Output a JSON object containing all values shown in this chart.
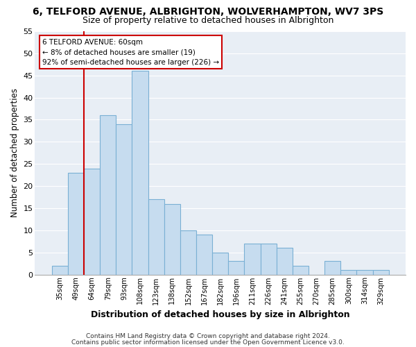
{
  "title": "6, TELFORD AVENUE, ALBRIGHTON, WOLVERHAMPTON, WV7 3PS",
  "subtitle": "Size of property relative to detached houses in Albrighton",
  "xlabel": "Distribution of detached houses by size in Albrighton",
  "ylabel": "Number of detached properties",
  "bar_labels": [
    "35sqm",
    "49sqm",
    "64sqm",
    "79sqm",
    "93sqm",
    "108sqm",
    "123sqm",
    "138sqm",
    "152sqm",
    "167sqm",
    "182sqm",
    "196sqm",
    "211sqm",
    "226sqm",
    "241sqm",
    "255sqm",
    "270sqm",
    "285sqm",
    "300sqm",
    "314sqm",
    "329sqm"
  ],
  "bar_values": [
    2,
    23,
    24,
    36,
    34,
    46,
    17,
    16,
    10,
    9,
    5,
    3,
    7,
    7,
    6,
    2,
    0,
    3,
    1,
    1,
    1
  ],
  "bar_color": "#c6dcef",
  "bar_edge_color": "#7ab0d4",
  "ylim": [
    0,
    55
  ],
  "yticks": [
    0,
    5,
    10,
    15,
    20,
    25,
    30,
    35,
    40,
    45,
    50,
    55
  ],
  "vline_color": "#cc0000",
  "annotation_title": "6 TELFORD AVENUE: 60sqm",
  "annotation_line1": "← 8% of detached houses are smaller (19)",
  "annotation_line2": "92% of semi-detached houses are larger (226) →",
  "annotation_box_color": "#ffffff",
  "annotation_box_edge_color": "#cc0000",
  "footer1": "Contains HM Land Registry data © Crown copyright and database right 2024.",
  "footer2": "Contains public sector information licensed under the Open Government Licence v3.0.",
  "background_color": "#ffffff",
  "plot_background_color": "#e8eef5",
  "grid_color": "#ffffff",
  "title_fontsize": 10,
  "subtitle_fontsize": 9
}
